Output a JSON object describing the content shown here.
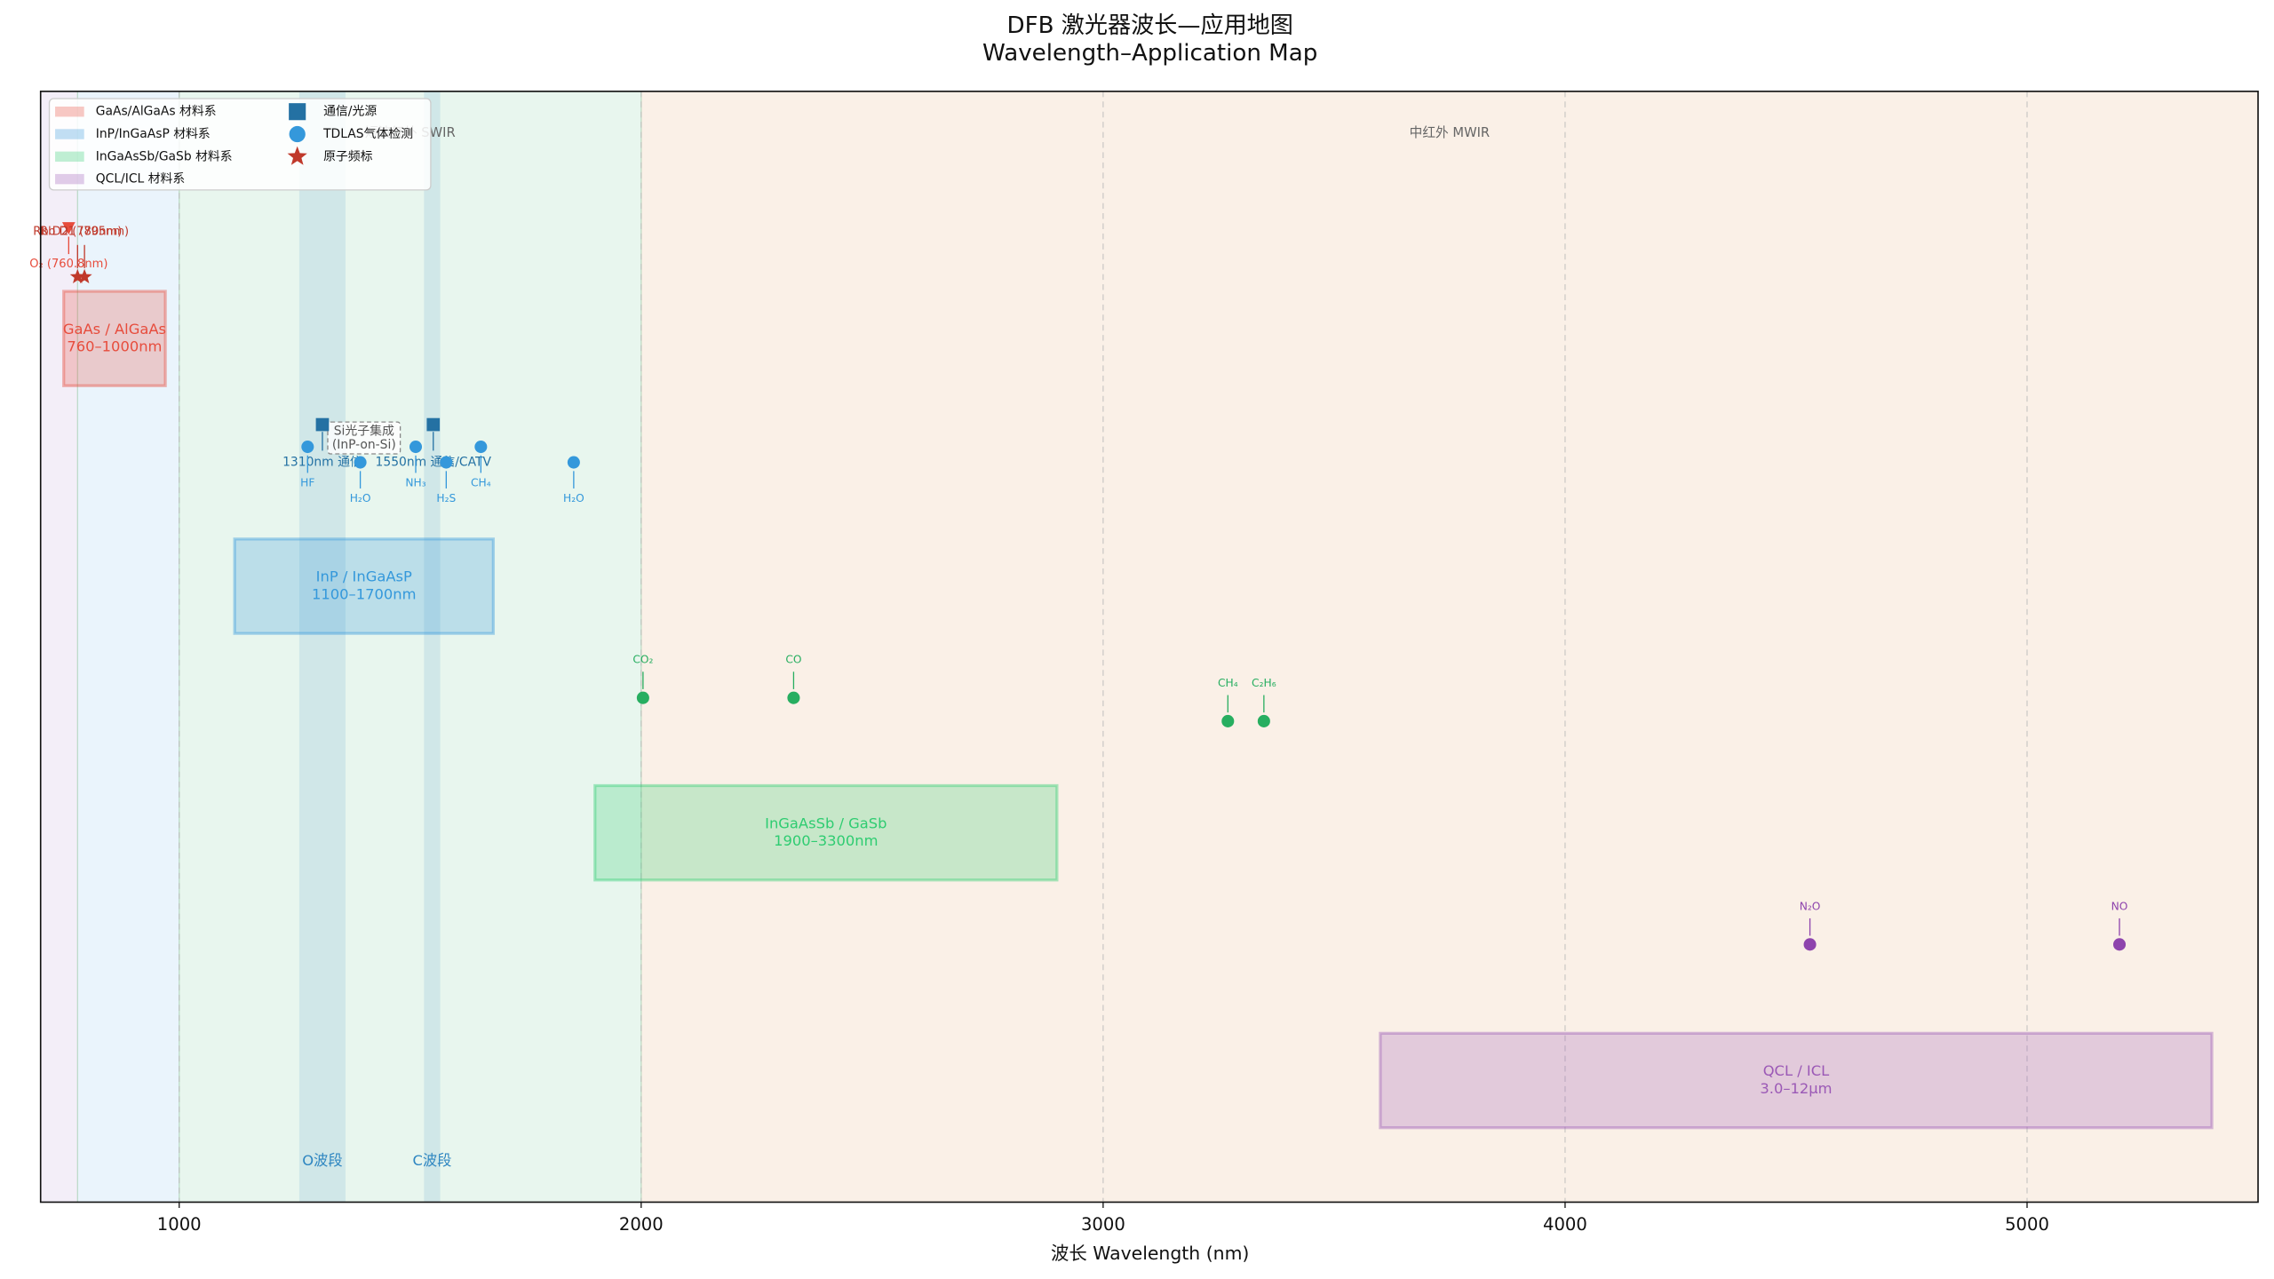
{
  "chart_data": {
    "type": "spectrum",
    "title": "DFB 激光器波长—应用地图",
    "subtitle": "Wavelength–Application Map",
    "xlabel": "波长 Wavelength (nm)",
    "xlim": [
      700,
      5500
    ],
    "ylim": [
      0,
      10
    ],
    "xticks": [
      1000,
      2000,
      3000,
      4000,
      5000
    ],
    "grid": true,
    "legend": "upper left",
    "regions": [
      {
        "range": [
          700,
          780
        ],
        "color": "#f3eef8"
      },
      {
        "range": [
          780,
          1000
        ],
        "color": "#eaf4fc"
      },
      {
        "range": [
          1000,
          2000
        ],
        "color": "#e8f6ee",
        "label": "短波红外 SWIR"
      },
      {
        "range": [
          2000,
          5500
        ],
        "color": "#faf0e7",
        "label": "中红外 MWIR"
      }
    ],
    "bands": [
      {
        "label": "O波段",
        "range": [
          1260,
          1360
        ],
        "color": "#2e86c1"
      },
      {
        "label": "C波段",
        "range": [
          1530,
          1565
        ],
        "color": "#2e86c1"
      }
    ],
    "materials": [
      {
        "name": "GaAs/AlGaAs 材料系",
        "label": [
          "GaAs / AlGaAs",
          "760–1000nm"
        ],
        "x": [
          750,
          970
        ],
        "y": [
          7.35,
          8.2
        ],
        "color": "#e74c3c"
      },
      {
        "name": "InP/InGaAsP 材料系",
        "label": [
          "InP / InGaAsP",
          "1100–1700nm"
        ],
        "x": [
          1120,
          1680
        ],
        "y": [
          5.12,
          5.97
        ],
        "color": "#3498db"
      },
      {
        "name": "InGaAsSb/GaSb 材料系",
        "label": [
          "InGaAsSb / GaSb",
          "1900–3300nm"
        ],
        "x": [
          1900,
          2900
        ],
        "y": [
          2.9,
          3.75
        ],
        "color": "#2ecc71"
      },
      {
        "name": "QCL/ICL 材料系",
        "label": [
          "QCL / ICL",
          "3.0–12μm"
        ],
        "x": [
          3600,
          5400
        ],
        "y": [
          0.67,
          1.52
        ],
        "color": "#9b59b6"
      }
    ],
    "points": [
      {
        "name": "通信/光源",
        "marker": "square",
        "color": "#2471a3",
        "x": [
          1310,
          1550
        ],
        "y": [
          7.0,
          7.0
        ],
        "labels": [
          "1310nm 通信",
          "1550nm 通信/CATV"
        ]
      },
      {
        "name": "TDLAS气体检测",
        "marker": "circle",
        "color": "#3498db",
        "x": [
          1278,
          1392,
          1512,
          1578,
          1653,
          1854,
          2004,
          2330,
          3270,
          3348,
          4530,
          5200
        ],
        "y": [
          6.8,
          6.66,
          6.8,
          6.66,
          6.8,
          6.66,
          4.54,
          4.54,
          4.33,
          4.33,
          2.32,
          2.32
        ],
        "labels": [
          "HF",
          "H₂O",
          "NH₃",
          "H₂S",
          "CH₄",
          "H₂O",
          "CO₂",
          "CO",
          "CH₄",
          "C₂H₆",
          "N₂O",
          "NO"
        ],
        "colors": [
          "#3498db",
          "#3498db",
          "#3498db",
          "#3498db",
          "#3498db",
          "#3498db",
          "#27ae60",
          "#27ae60",
          "#27ae60",
          "#27ae60",
          "#8e44ad",
          "#8e44ad"
        ]
      },
      {
        "name": "原子频标",
        "marker": "star",
        "color": "#c0392b",
        "x": [
          760.8,
          780,
          795
        ],
        "y": [
          8.77,
          8.33,
          8.33
        ],
        "labels": [
          "O₂ (760.8nm)",
          "Rb D2 (780nm)",
          "Rb D1 (795nm)"
        ],
        "markers": [
          "triangle",
          "star",
          "star"
        ],
        "colors": [
          "#e74c3c",
          "#c0392b",
          "#c0392b"
        ]
      }
    ],
    "annotation": [
      "Si光子集成",
      "(InP-on-Si)"
    ]
  }
}
